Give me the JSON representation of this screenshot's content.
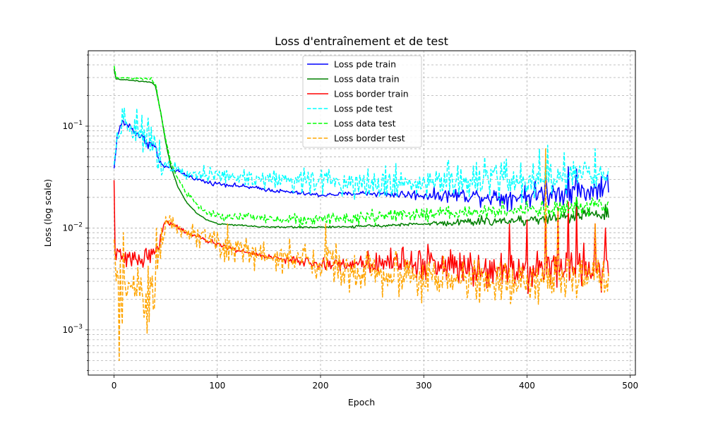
{
  "chart_data": {
    "type": "line",
    "title": "Loss d'entraînement et de test",
    "xlabel": "Epoch",
    "ylabel": "Loss (log scale)",
    "yscale": "log",
    "xlim": [
      -25,
      505
    ],
    "ylim": [
      0.00036,
      0.55
    ],
    "x_ticks": [
      0,
      100,
      200,
      300,
      400,
      500
    ],
    "y_ticks": [
      {
        "value": 0.001,
        "base": "10",
        "exp": "−3"
      },
      {
        "value": 0.01,
        "base": "10",
        "exp": "−2"
      },
      {
        "value": 0.1,
        "base": "10",
        "exp": "−1"
      }
    ],
    "grid": "major and minor, dashed",
    "legend_position": "upper center",
    "n_epochs": 480,
    "series": [
      {
        "name": "Loss pde train",
        "color": "#0000ff",
        "dash": "solid",
        "keyframes": [
          [
            0,
            0.038
          ],
          [
            3,
            0.08
          ],
          [
            8,
            0.11
          ],
          [
            15,
            0.1
          ],
          [
            22,
            0.085
          ],
          [
            30,
            0.072
          ],
          [
            40,
            0.062
          ],
          [
            45,
            0.042
          ],
          [
            55,
            0.038
          ],
          [
            70,
            0.033
          ],
          [
            90,
            0.028
          ],
          [
            120,
            0.026
          ],
          [
            160,
            0.023
          ],
          [
            200,
            0.021
          ],
          [
            240,
            0.022
          ],
          [
            300,
            0.021
          ],
          [
            340,
            0.021
          ],
          [
            380,
            0.02
          ],
          [
            400,
            0.021
          ],
          [
            420,
            0.022
          ],
          [
            440,
            0.023
          ],
          [
            460,
            0.023
          ],
          [
            479,
            0.026
          ]
        ],
        "noise": [
          [
            0,
            0.05
          ],
          [
            40,
            0.08
          ],
          [
            50,
            0.03
          ],
          [
            230,
            0.03
          ],
          [
            330,
            0.1
          ],
          [
            410,
            0.18
          ],
          [
            479,
            0.18
          ]
        ],
        "spikes": [
          [
            418,
            0.034
          ],
          [
            440,
            0.04
          ],
          [
            448,
            0.038
          ],
          [
            472,
            0.032
          ]
        ]
      },
      {
        "name": "Loss data train",
        "color": "#008000",
        "dash": "solid",
        "keyframes": [
          [
            0,
            0.36
          ],
          [
            2,
            0.29
          ],
          [
            20,
            0.28
          ],
          [
            36,
            0.27
          ],
          [
            40,
            0.25
          ],
          [
            45,
            0.14
          ],
          [
            50,
            0.07
          ],
          [
            55,
            0.04
          ],
          [
            62,
            0.025
          ],
          [
            70,
            0.018
          ],
          [
            80,
            0.014
          ],
          [
            90,
            0.012
          ],
          [
            100,
            0.011
          ],
          [
            150,
            0.0102
          ],
          [
            220,
            0.0102
          ],
          [
            300,
            0.011
          ],
          [
            350,
            0.0115
          ],
          [
            400,
            0.012
          ],
          [
            440,
            0.013
          ],
          [
            479,
            0.014
          ]
        ],
        "noise": [
          [
            0,
            0.005
          ],
          [
            300,
            0.02
          ],
          [
            330,
            0.06
          ],
          [
            479,
            0.1
          ]
        ],
        "spikes": [
          [
            448,
            0.02
          ],
          [
            476,
            0.017
          ]
        ]
      },
      {
        "name": "Loss border train",
        "color": "#ff0000",
        "dash": "solid",
        "keyframes": [
          [
            0,
            0.028
          ],
          [
            1,
            0.006
          ],
          [
            10,
            0.0048
          ],
          [
            20,
            0.005
          ],
          [
            30,
            0.0052
          ],
          [
            40,
            0.0058
          ],
          [
            45,
            0.0085
          ],
          [
            50,
            0.0115
          ],
          [
            60,
            0.0105
          ],
          [
            70,
            0.009
          ],
          [
            90,
            0.0075
          ],
          [
            120,
            0.006
          ],
          [
            160,
            0.005
          ],
          [
            200,
            0.0044
          ],
          [
            240,
            0.0045
          ],
          [
            270,
            0.0048
          ],
          [
            300,
            0.0045
          ],
          [
            350,
            0.0042
          ],
          [
            400,
            0.004
          ],
          [
            479,
            0.0042
          ]
        ],
        "noise": [
          [
            0,
            0.12
          ],
          [
            45,
            0.12
          ],
          [
            50,
            0.03
          ],
          [
            160,
            0.04
          ],
          [
            240,
            0.12
          ],
          [
            280,
            0.25
          ],
          [
            479,
            0.3
          ]
        ],
        "spikes": [
          [
            383,
            0.011
          ],
          [
            400,
            0.012
          ],
          [
            418,
            0.013
          ],
          [
            430,
            0.016
          ],
          [
            440,
            0.018
          ],
          [
            448,
            0.016
          ],
          [
            466,
            0.011
          ],
          [
            476,
            0.01
          ]
        ]
      },
      {
        "name": "Loss pde test",
        "color": "#00ffff",
        "dash": "dashed",
        "keyframes": [
          [
            0,
            0.044
          ],
          [
            3,
            0.075
          ],
          [
            8,
            0.12
          ],
          [
            15,
            0.1
          ],
          [
            22,
            0.09
          ],
          [
            30,
            0.08
          ],
          [
            40,
            0.068
          ],
          [
            45,
            0.045
          ],
          [
            55,
            0.041
          ],
          [
            70,
            0.036
          ],
          [
            90,
            0.033
          ],
          [
            130,
            0.031
          ],
          [
            200,
            0.029
          ],
          [
            300,
            0.028
          ],
          [
            400,
            0.03
          ],
          [
            479,
            0.032
          ]
        ],
        "noise": [
          [
            0,
            0.2
          ],
          [
            45,
            0.25
          ],
          [
            50,
            0.08
          ],
          [
            80,
            0.1
          ],
          [
            150,
            0.15
          ],
          [
            200,
            0.2
          ],
          [
            240,
            0.25
          ],
          [
            479,
            0.3
          ]
        ],
        "spikes": [
          [
            10,
            0.15
          ],
          [
            22,
            0.15
          ],
          [
            412,
            0.06
          ],
          [
            420,
            0.065
          ],
          [
            436,
            0.055
          ],
          [
            466,
            0.06
          ]
        ]
      },
      {
        "name": "Loss data test",
        "color": "#00ff00",
        "dash": "dashed",
        "keyframes": [
          [
            0,
            0.39
          ],
          [
            2,
            0.3
          ],
          [
            20,
            0.295
          ],
          [
            36,
            0.29
          ],
          [
            40,
            0.26
          ],
          [
            45,
            0.14
          ],
          [
            50,
            0.075
          ],
          [
            55,
            0.045
          ],
          [
            62,
            0.03
          ],
          [
            70,
            0.022
          ],
          [
            80,
            0.017
          ],
          [
            90,
            0.014
          ],
          [
            100,
            0.013
          ],
          [
            150,
            0.0125
          ],
          [
            210,
            0.012
          ],
          [
            260,
            0.013
          ],
          [
            300,
            0.0135
          ],
          [
            350,
            0.0145
          ],
          [
            400,
            0.015
          ],
          [
            479,
            0.016
          ]
        ],
        "noise": [
          [
            0,
            0.005
          ],
          [
            80,
            0.05
          ],
          [
            150,
            0.08
          ],
          [
            479,
            0.12
          ]
        ],
        "spikes": [
          [
            212,
            0.014
          ],
          [
            448,
            0.02
          ],
          [
            470,
            0.019
          ]
        ]
      },
      {
        "name": "Loss border test",
        "color": "#ffa500",
        "dash": "dashed",
        "keyframes": [
          [
            0,
            0.008
          ],
          [
            3,
            0.0025
          ],
          [
            10,
            0.002
          ],
          [
            20,
            0.002
          ],
          [
            30,
            0.002
          ],
          [
            38,
            0.003
          ],
          [
            45,
            0.008
          ],
          [
            50,
            0.012
          ],
          [
            60,
            0.0105
          ],
          [
            80,
            0.0085
          ],
          [
            100,
            0.007
          ],
          [
            140,
            0.0055
          ],
          [
            200,
            0.0045
          ],
          [
            250,
            0.0038
          ],
          [
            300,
            0.0032
          ],
          [
            350,
            0.003
          ],
          [
            400,
            0.003
          ],
          [
            479,
            0.0032
          ]
        ],
        "noise": [
          [
            0,
            0.5
          ],
          [
            45,
            0.5
          ],
          [
            50,
            0.1
          ],
          [
            80,
            0.2
          ],
          [
            200,
            0.3
          ],
          [
            479,
            0.3
          ]
        ],
        "spikes": [
          [
            5,
            0.0005
          ],
          [
            9,
            0.009
          ],
          [
            34,
            0.0012
          ],
          [
            110,
            0.011
          ],
          [
            205,
            0.011
          ],
          [
            418,
            0.06
          ],
          [
            430,
            0.015
          ],
          [
            466,
            0.011
          ]
        ]
      }
    ]
  }
}
